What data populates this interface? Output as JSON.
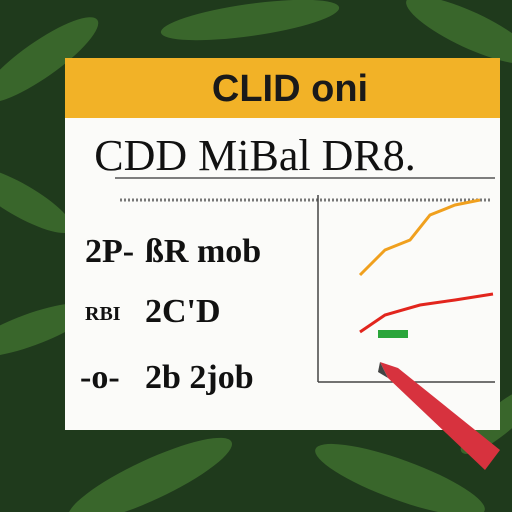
{
  "header": {
    "title": "CLID oni"
  },
  "card": {
    "title": "CDD MiBal DR8.",
    "rows": [
      {
        "left": "2P-",
        "right": "ßR mob"
      },
      {
        "left": "RBI",
        "right": "2C'D"
      },
      {
        "left": "-o-",
        "right": "2b 2job"
      }
    ]
  }
}
